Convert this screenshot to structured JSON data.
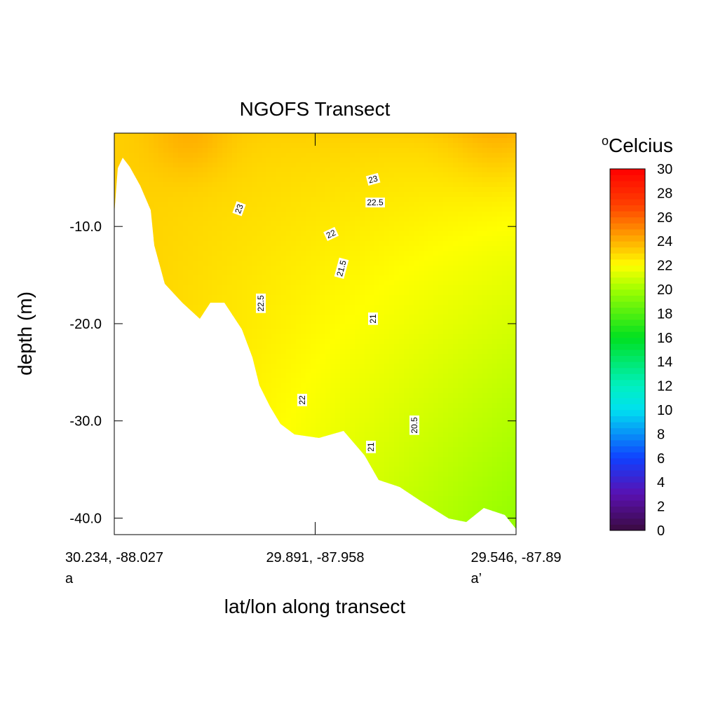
{
  "chart_data": {
    "type": "contour",
    "title": "NGOFS Transect",
    "x_label": "lat/lon along transect",
    "y_label": "depth (m)",
    "xticks": [
      {
        "label": "30.234, -88.027",
        "endpoint": "a"
      },
      {
        "label": "29.891, -87.958"
      },
      {
        "label": "29.546, -87.89",
        "endpoint": "a’"
      }
    ],
    "ylim": [
      -41.7,
      -0.4
    ],
    "yticks": [
      {
        "value": -10,
        "label": "-10.0"
      },
      {
        "value": -20,
        "label": "-20.0"
      },
      {
        "value": -30,
        "label": "-30.0"
      },
      {
        "value": -40,
        "label": "-40.0"
      }
    ],
    "colorbar": {
      "superscript": "o",
      "label": "Celcius",
      "clim": [
        0,
        30
      ],
      "ticks": [
        0,
        2,
        4,
        6,
        8,
        10,
        12,
        14,
        16,
        18,
        20,
        22,
        24,
        26,
        28,
        30
      ]
    },
    "contour_labels": [
      23,
      23,
      22.5,
      22,
      21.5,
      22.5,
      21,
      22,
      20.5,
      21
    ]
  }
}
